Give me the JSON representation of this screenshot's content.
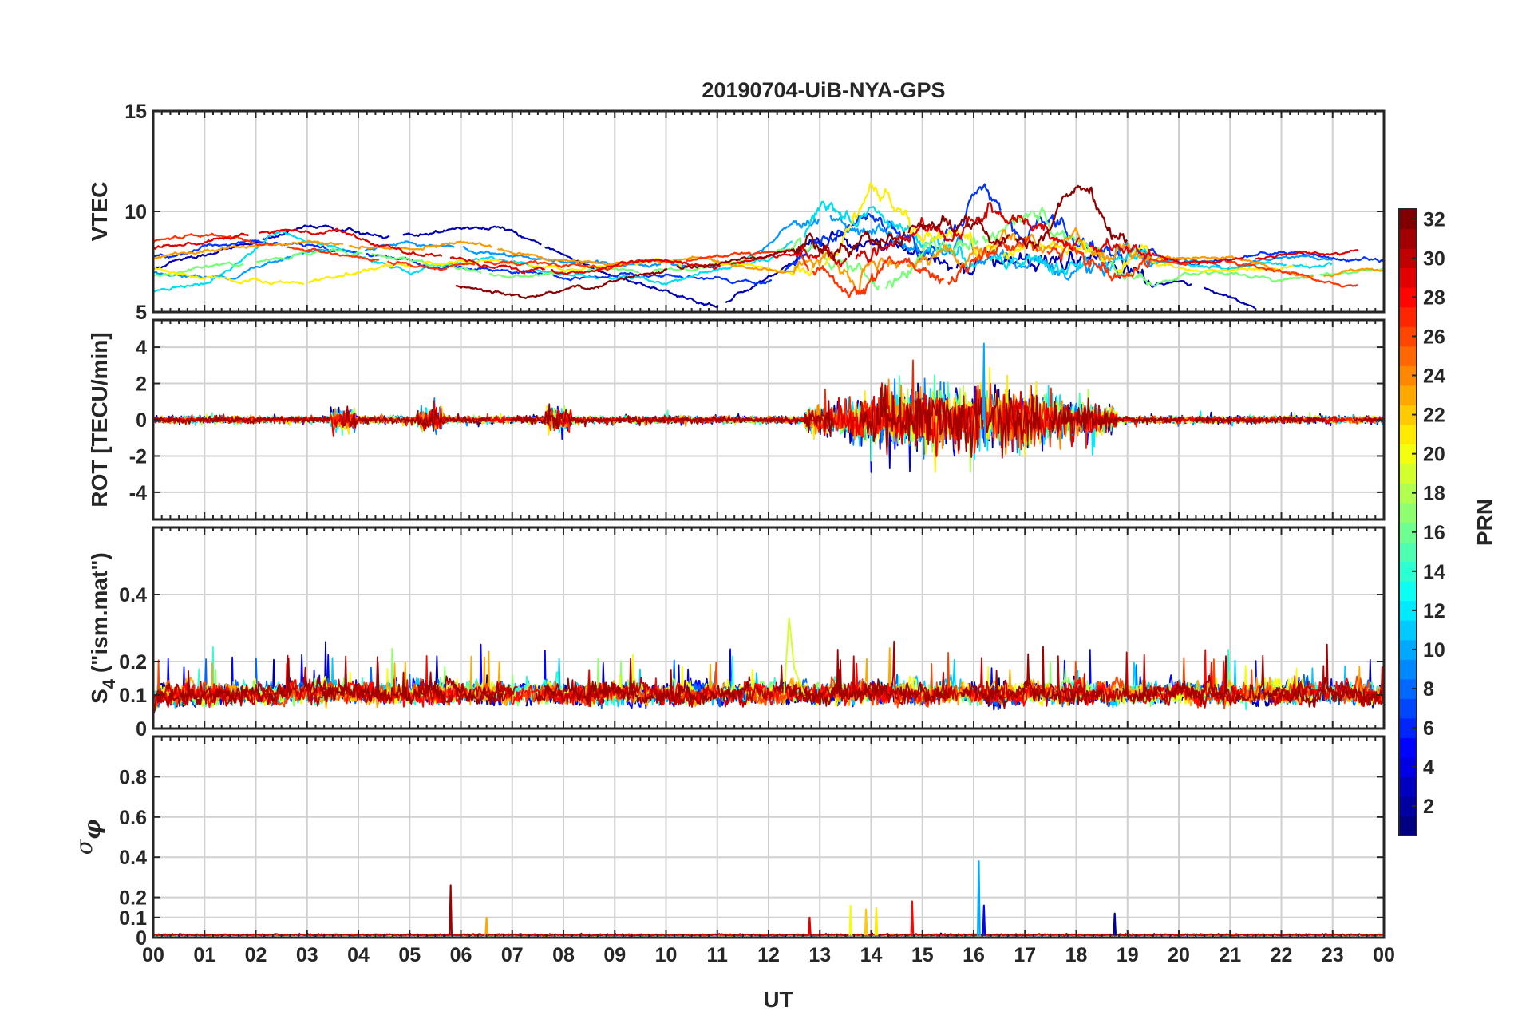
{
  "chart_data": {
    "title": "20190704-UiB-NYA-GPS",
    "type": "line",
    "xlabel": "UT",
    "x_ticks": [
      "00",
      "01",
      "02",
      "03",
      "04",
      "05",
      "06",
      "07",
      "08",
      "09",
      "10",
      "11",
      "12",
      "13",
      "14",
      "15",
      "16",
      "17",
      "18",
      "19",
      "20",
      "21",
      "22",
      "23",
      "00"
    ],
    "xlim_hours": [
      0,
      24
    ],
    "grid": true,
    "colorbar": {
      "label": "PRN",
      "colormap": "jet",
      "range": [
        1,
        32
      ],
      "ticks": [
        2,
        4,
        6,
        8,
        10,
        12,
        14,
        16,
        18,
        20,
        22,
        24,
        26,
        28,
        30,
        32
      ]
    },
    "panels": [
      {
        "key": "vtec",
        "ylabel": "VTEC",
        "ylim": [
          5,
          15
        ],
        "yticks": [
          5,
          10,
          15
        ],
        "series_profile": {
          "baseline": 7.5,
          "spread": 0.9,
          "active_windows": [
            [
              12.5,
              19.5
            ]
          ],
          "active_peak": 11.8,
          "min_observed": 5.1
        },
        "series": [
          {
            "prn": 2,
            "color": "#0000b3",
            "segments": [
              [
                0.0,
                7.2
              ],
              [
                3.0,
                9.3
              ],
              [
                4.5,
                8.7
              ],
              [
                6.8,
                9.3
              ],
              [
                7.6,
                8.3
              ],
              [
                9.0,
                6.8
              ],
              [
                11.0,
                5.2
              ],
              [
                12.0,
                6.8
              ],
              [
                13.5,
                8.5
              ],
              [
                15.5,
                8.0
              ],
              [
                17.0,
                7.7
              ],
              [
                19.0,
                7.2
              ],
              [
                20.5,
                6.2
              ],
              [
                21.5,
                5.3
              ]
            ]
          },
          {
            "prn": 5,
            "color": "#0033ff",
            "segments": [
              [
                0.0,
                7.8
              ],
              [
                2.0,
                8.5
              ],
              [
                4.0,
                8.0
              ],
              [
                6.0,
                7.2
              ],
              [
                8.0,
                6.7
              ],
              [
                10.0,
                6.9
              ],
              [
                12.0,
                6.5
              ],
              [
                13.5,
                9.0
              ],
              [
                14.0,
                10.1
              ],
              [
                15.0,
                8.1
              ],
              [
                16.2,
                10.8
              ],
              [
                17.0,
                9.0
              ],
              [
                18.5,
                8.4
              ],
              [
                20.0,
                7.3
              ],
              [
                22.0,
                8.0
              ],
              [
                24.0,
                7.6
              ]
            ]
          },
          {
            "prn": 10,
            "color": "#0099ff",
            "segments": [
              [
                0.0,
                7.0
              ],
              [
                1.5,
                6.6
              ],
              [
                3.0,
                8.0
              ],
              [
                5.0,
                8.5
              ],
              [
                7.0,
                7.8
              ],
              [
                9.0,
                7.2
              ],
              [
                11.5,
                7.4
              ],
              [
                12.5,
                9.5
              ],
              [
                13.2,
                9.8
              ],
              [
                14.2,
                9.2
              ],
              [
                15.0,
                8.0
              ],
              [
                16.0,
                7.5
              ],
              [
                17.5,
                7.1
              ],
              [
                19.0,
                7.8
              ],
              [
                21.0,
                7.4
              ],
              [
                23.0,
                7.8
              ]
            ]
          },
          {
            "prn": 13,
            "color": "#00ddee",
            "segments": [
              [
                0.0,
                6.0
              ],
              [
                1.0,
                6.4
              ],
              [
                2.5,
                8.9
              ],
              [
                3.5,
                8.2
              ],
              [
                5.0,
                6.9
              ],
              [
                6.5,
                7.7
              ],
              [
                8.0,
                6.9
              ],
              [
                10.0,
                6.5
              ],
              [
                12.0,
                7.6
              ],
              [
                13.0,
                9.6
              ],
              [
                14.0,
                9.8
              ],
              [
                15.0,
                8.5
              ],
              [
                16.0,
                7.8
              ],
              [
                17.5,
                7.0
              ],
              [
                19.0,
                7.6
              ],
              [
                21.0,
                7.3
              ],
              [
                23.0,
                7.4
              ]
            ]
          },
          {
            "prn": 17,
            "color": "#77ff77",
            "segments": [
              [
                0.0,
                6.8
              ],
              [
                2.0,
                7.6
              ],
              [
                3.5,
                8.1
              ],
              [
                5.0,
                7.6
              ],
              [
                7.0,
                6.8
              ],
              [
                8.5,
                7.2
              ],
              [
                10.5,
                7.1
              ],
              [
                12.5,
                8.1
              ],
              [
                13.5,
                7.5
              ],
              [
                14.5,
                6.4
              ],
              [
                16.0,
                8.7
              ],
              [
                17.0,
                9.9
              ],
              [
                18.0,
                8.2
              ],
              [
                19.5,
                6.6
              ],
              [
                20.5,
                7.0
              ],
              [
                22.0,
                6.6
              ],
              [
                24.0,
                7.1
              ]
            ]
          },
          {
            "prn": 20,
            "color": "#ffee00",
            "segments": [
              [
                0.0,
                7.2
              ],
              [
                1.5,
                6.6
              ],
              [
                3.0,
                6.5
              ],
              [
                4.5,
                7.2
              ],
              [
                6.0,
                7.6
              ],
              [
                8.0,
                7.1
              ],
              [
                10.0,
                7.5
              ],
              [
                12.0,
                7.2
              ],
              [
                13.0,
                6.6
              ],
              [
                14.0,
                10.8
              ],
              [
                14.5,
                9.9
              ],
              [
                15.5,
                8.6
              ],
              [
                16.5,
                7.9
              ],
              [
                18.0,
                8.1
              ],
              [
                19.5,
                7.2
              ],
              [
                21.0,
                7.0
              ],
              [
                22.5,
                7.3
              ]
            ]
          },
          {
            "prn": 23,
            "color": "#ff9900",
            "segments": [
              [
                0.0,
                7.7
              ],
              [
                1.5,
                8.2
              ],
              [
                3.0,
                8.4
              ],
              [
                4.5,
                8.1
              ],
              [
                6.0,
                8.5
              ],
              [
                7.5,
                7.7
              ],
              [
                9.0,
                7.3
              ],
              [
                10.5,
                7.7
              ],
              [
                12.0,
                7.0
              ],
              [
                13.5,
                7.3
              ],
              [
                15.0,
                7.7
              ],
              [
                16.5,
                8.4
              ],
              [
                18.0,
                8.8
              ],
              [
                19.5,
                7.8
              ],
              [
                21.0,
                7.6
              ],
              [
                22.5,
                6.8
              ],
              [
                24.0,
                7.2
              ]
            ]
          },
          {
            "prn": 27,
            "color": "#ff3300",
            "segments": [
              [
                0.0,
                8.5
              ],
              [
                1.0,
                8.9
              ],
              [
                2.5,
                8.3
              ],
              [
                4.0,
                7.7
              ],
              [
                5.5,
                7.2
              ],
              [
                7.0,
                7.5
              ],
              [
                9.0,
                7.3
              ],
              [
                11.0,
                7.8
              ],
              [
                12.5,
                7.9
              ],
              [
                13.5,
                6.5
              ],
              [
                14.5,
                7.0
              ],
              [
                15.5,
                6.9
              ],
              [
                16.5,
                8.2
              ],
              [
                18.0,
                8.5
              ],
              [
                19.5,
                7.4
              ],
              [
                21.0,
                7.5
              ],
              [
                22.5,
                6.8
              ],
              [
                23.5,
                6.3
              ]
            ]
          },
          {
            "prn": 29,
            "color": "#dd0000",
            "segments": [
              [
                0.0,
                8.1
              ],
              [
                2.0,
                8.9
              ],
              [
                3.5,
                9.0
              ],
              [
                5.0,
                8.0
              ],
              [
                6.5,
                7.3
              ],
              [
                8.0,
                6.9
              ],
              [
                9.5,
                7.6
              ],
              [
                11.0,
                7.2
              ],
              [
                12.5,
                7.9
              ],
              [
                14.0,
                7.8
              ],
              [
                15.5,
                9.0
              ],
              [
                16.5,
                9.9
              ],
              [
                17.5,
                8.6
              ],
              [
                18.5,
                8.1
              ],
              [
                20.0,
                7.3
              ],
              [
                21.5,
                7.6
              ],
              [
                23.5,
                8.0
              ]
            ]
          },
          {
            "prn": 31,
            "color": "#8b0000",
            "segments": [
              [
                5.9,
                6.3
              ],
              [
                6.5,
                6.0
              ],
              [
                7.3,
                5.8
              ],
              [
                15.7,
                9.6
              ],
              [
                16.2,
                9.0
              ],
              [
                17.0,
                8.3
              ],
              [
                18.2,
                11.6
              ],
              [
                18.5,
                10.0
              ],
              [
                19.0,
                8.4
              ]
            ]
          }
        ]
      },
      {
        "key": "rot",
        "ylabel": "ROT [TECU/min]",
        "ylim": [
          -5.5,
          5.5
        ],
        "yticks": [
          -4,
          -2,
          0,
          2,
          4
        ],
        "series_profile": {
          "baseline": 0,
          "quiet_amplitude": 0.35,
          "active_windows": [
            [
              12.7,
              18.8
            ]
          ],
          "active_min": -2.9,
          "active_max": 4.2,
          "minor_bursts_hours": [
            3.7,
            5.4,
            7.9
          ]
        }
      },
      {
        "key": "s4",
        "ylabel": "S4 (\"ism.mat\")",
        "ylabel_main": "S",
        "ylabel_sub": "4",
        "ylabel_rest": " (\"ism.mat\")",
        "ylim": [
          0,
          0.6
        ],
        "yticks": [
          0,
          0.1,
          0.2,
          0.4
        ],
        "series_profile": {
          "baseline": 0.06,
          "typical_max": 0.18,
          "peak": 0.33,
          "peak_hour": 12.4
        }
      },
      {
        "key": "sigma",
        "ylabel": "σφ",
        "ylabel_main": "σ",
        "ylabel_sub": "φ",
        "ylim": [
          0,
          1
        ],
        "yticks": [
          0,
          0.1,
          0.2,
          0.4,
          0.6,
          0.8
        ],
        "series_profile": {
          "baseline": 0.01,
          "spikes": [
            [
              5.8,
              0.26,
              31
            ],
            [
              6.5,
              0.1,
              23
            ],
            [
              12.8,
              0.1,
              29
            ],
            [
              13.6,
              0.16,
              20
            ],
            [
              13.9,
              0.14,
              22
            ],
            [
              14.1,
              0.15,
              21
            ],
            [
              14.8,
              0.18,
              28
            ],
            [
              16.1,
              0.38,
              10
            ],
            [
              16.2,
              0.16,
              5
            ],
            [
              18.75,
              0.12,
              2
            ]
          ]
        }
      }
    ]
  }
}
